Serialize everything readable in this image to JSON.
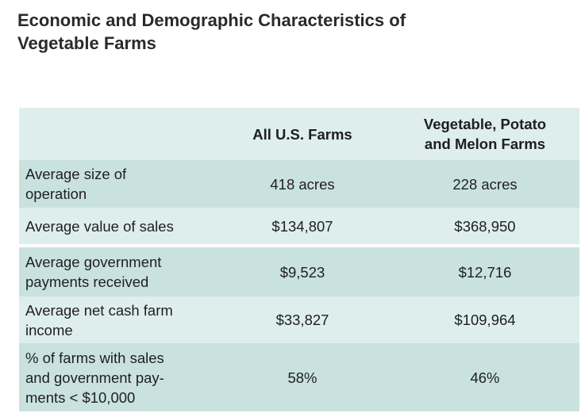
{
  "title_line1": "Economic and Demographic Characteristics of",
  "title_line2": "Vegetable Farms",
  "table": {
    "headers": [
      "",
      "All U.S. Farms",
      "Vegetable, Potato",
      "and Melon Farms"
    ],
    "rows": [
      {
        "label_line1": "Average size of",
        "label_line2": "operation",
        "label_line3": "",
        "all_us": "418 acres",
        "vegetable": "228 acres"
      },
      {
        "label_line1": "Average value of sales",
        "label_line2": "",
        "label_line3": "",
        "all_us": "$134,807",
        "vegetable": "$368,950"
      },
      {
        "label_line1": "Average government",
        "label_line2": "payments received",
        "label_line3": "",
        "all_us": "$9,523",
        "vegetable": "$12,716"
      },
      {
        "label_line1": "Average net cash farm",
        "label_line2": "income",
        "label_line3": "",
        "all_us": "$33,827",
        "vegetable": "$109,964"
      },
      {
        "label_line1": "% of farms with sales",
        "label_line2": "and government pay-",
        "label_line3": "ments < $10,000",
        "all_us": "58%",
        "vegetable": "46%"
      }
    ]
  },
  "colors": {
    "header_bg": "#ddeeed",
    "row_dark": "#c9e2e0",
    "row_light": "#ddeeed"
  }
}
